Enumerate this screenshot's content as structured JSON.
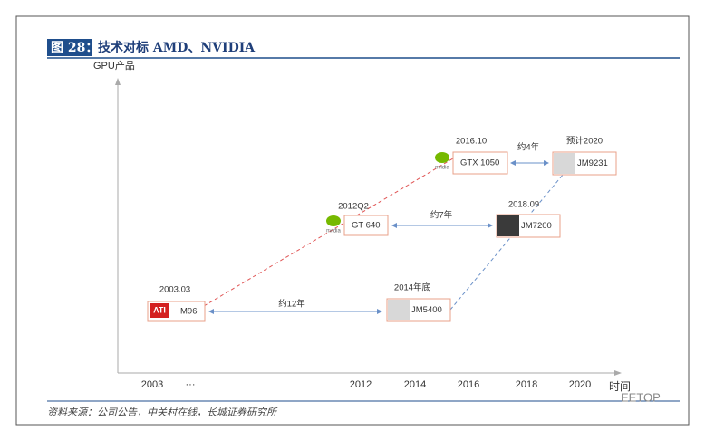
{
  "header": {
    "figure": "图 28：",
    "title": "技术对标 AMD、NVIDIA"
  },
  "axes": {
    "y_label": "GPU产品",
    "x_label": "时间",
    "x_labels": [
      "2003",
      "···",
      "2012",
      "2014",
      "2016",
      "2018",
      "2020"
    ]
  },
  "nodes": [
    {
      "date": "2003.03",
      "label": "M96",
      "logo": "ATI"
    },
    {
      "date": "2012Q2",
      "label": "GT 640",
      "logo": "nvidia"
    },
    {
      "date": "2016.10",
      "label": "GTX 1050",
      "logo": "nvidia"
    },
    {
      "date": "2014年底",
      "label": "JM5400"
    },
    {
      "date": "2018.09",
      "label": "JM7200"
    },
    {
      "date": "预计2020",
      "label": "JM9231"
    }
  ],
  "gaps": [
    "约12年",
    "约7年",
    "约4年"
  ],
  "source": "资料来源：公司公告，中关村在线，长城证券研究所",
  "watermark": "EETOP"
}
